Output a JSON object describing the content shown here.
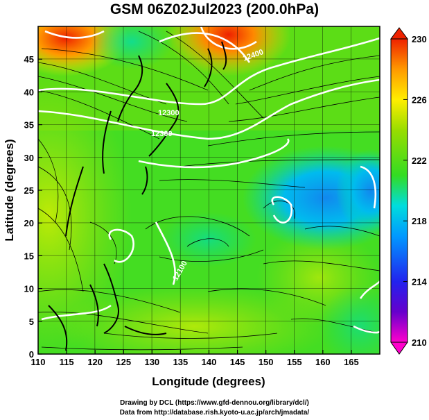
{
  "title": "GSM 06Z02Jul2023 (200.0hPa)",
  "x_axis": {
    "label": "Longitude (degrees)",
    "min": 110,
    "max": 170,
    "ticks": [
      110,
      115,
      120,
      125,
      130,
      135,
      140,
      145,
      150,
      155,
      160,
      165
    ]
  },
  "y_axis": {
    "label": "Latitude  (degrees)",
    "min": 0,
    "max": 50,
    "ticks": [
      0,
      5,
      10,
      15,
      20,
      25,
      30,
      35,
      40,
      45
    ]
  },
  "colorbar": {
    "min": 210,
    "max": 230,
    "tick_labels": [
      "230",
      "226",
      "222",
      "218",
      "214",
      "210"
    ],
    "colors": [
      "#ff00cc",
      "#3300cc",
      "#0066ff",
      "#00ccff",
      "#00ffaa",
      "#33dd00",
      "#99dd00",
      "#ffee00",
      "#ff9900",
      "#ee2200"
    ]
  },
  "contour_labels": [
    "12300",
    "12300",
    "12400",
    "12100"
  ],
  "credits": {
    "line1": "Drawing by DCL (https://www.gfd-dennou.org/library/dcl/)",
    "line2": "Data from http://database.rish.kyoto-u.ac.jp/arch/jmadata/"
  },
  "field_features": [
    {
      "name": "warm-core-northwest",
      "lon": 116,
      "lat": 47,
      "value": 229
    },
    {
      "name": "warm-core-north",
      "lon": 142,
      "lat": 48,
      "value": 230
    },
    {
      "name": "cool-region-east",
      "lon": 158,
      "lat": 27,
      "value": 218
    },
    {
      "name": "cool-region-far-east",
      "lon": 168,
      "lat": 27,
      "value": 217
    },
    {
      "name": "mild-band-center",
      "lon": 145,
      "lat": 20,
      "value": 222
    },
    {
      "name": "warm-south",
      "lon": 130,
      "lat": 3,
      "value": 225
    }
  ]
}
